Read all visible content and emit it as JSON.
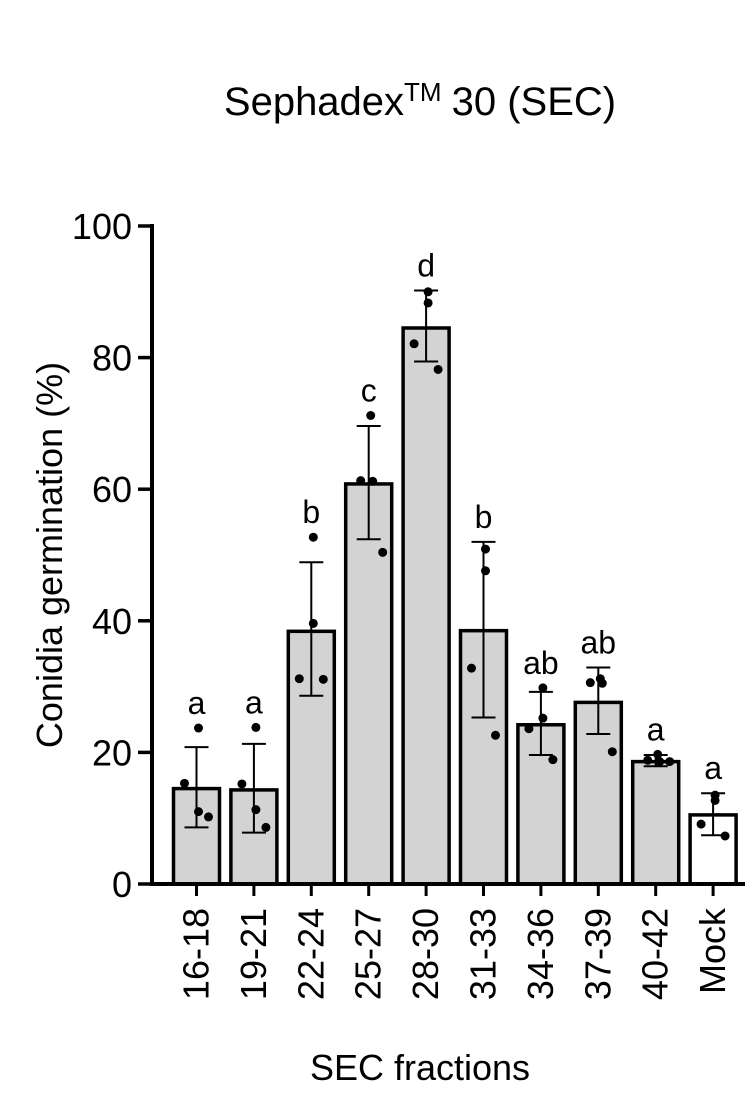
{
  "chart_data": {
    "type": "bar",
    "title": "Sephadex",
    "title_superscript": "TM",
    "title_suffix": "30 (SEC)",
    "xlabel": "SEC fractions",
    "ylabel": "Conidia germination (%)",
    "ylim": [
      0,
      100
    ],
    "yticks": [
      "0",
      "20",
      "40",
      "60",
      "80",
      "100"
    ],
    "categories": [
      "16-18",
      "19-21",
      "22-24",
      "25-27",
      "28-30",
      "31-33",
      "34-36",
      "37-39",
      "40-42",
      "Mock"
    ],
    "values": [
      14.5,
      14.3,
      38.4,
      60.8,
      84.5,
      38.5,
      24.2,
      27.6,
      18.6,
      10.5
    ],
    "error_upper": [
      20.8,
      21.3,
      48.9,
      69.6,
      90.2,
      52.0,
      29.2,
      32.9,
      19.6,
      13.8
    ],
    "error_lower": [
      8.6,
      7.8,
      28.6,
      52.4,
      79.4,
      25.3,
      19.6,
      22.8,
      17.9,
      7.4
    ],
    "points": [
      [
        23.7,
        11.0,
        15.3,
        10.2
      ],
      [
        23.8,
        11.3,
        15.2,
        8.6
      ],
      [
        52.7,
        39.6,
        31.2,
        31.1
      ],
      [
        71.2,
        61.3,
        61.2,
        50.4
      ],
      [
        90.0,
        88.3,
        82.1,
        78.2
      ],
      [
        50.9,
        47.6,
        32.8,
        22.6
      ],
      [
        29.8,
        25.2,
        23.6,
        18.9
      ],
      [
        31.2,
        30.6,
        30.5,
        20.1
      ],
      [
        19.7,
        18.8,
        18.6,
        18.6
      ],
      [
        13.5,
        12.7,
        9.1,
        7.3
      ]
    ],
    "letters": [
      "a",
      "a",
      "b",
      "c",
      "d",
      "b",
      "ab",
      "ab",
      "a",
      "a"
    ],
    "bar_fill": [
      "#d3d3d3",
      "#d3d3d3",
      "#d3d3d3",
      "#d3d3d3",
      "#d3d3d3",
      "#d3d3d3",
      "#d3d3d3",
      "#d3d3d3",
      "#d3d3d3",
      "#ffffff"
    ],
    "grid": false,
    "legend": "none"
  }
}
